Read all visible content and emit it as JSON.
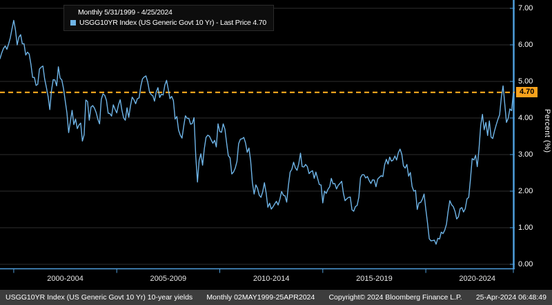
{
  "chart_data": {
    "type": "line",
    "title": "USGG10YR Index (US Generic Govt 10 Yr) - Last Price 4.70",
    "legend": {
      "line1": "Monthly 5/31/1999 - 4/25/2024",
      "line2": "USGG10YR Index (US Generic Govt 10 Yr) - Last Price 4.70"
    },
    "legend_position": "top-left",
    "grid": "horizontal",
    "ylabel": "Percent (%)",
    "ylim": [
      0,
      7
    ],
    "yticks": [
      {
        "value": 7,
        "label": "7.00"
      },
      {
        "value": 6,
        "label": "6.00"
      },
      {
        "value": 5,
        "label": "5.00"
      },
      {
        "value": 4,
        "label": "4.00"
      },
      {
        "value": 3,
        "label": "3.00"
      },
      {
        "value": 2,
        "label": "2.00"
      },
      {
        "value": 1,
        "label": "1.00"
      },
      {
        "value": 0,
        "label": "0.00"
      }
    ],
    "last_price": {
      "value": 4.7,
      "label": "4.70"
    },
    "x_start": "5/31/1999",
    "x_end": "4/25/2024",
    "x_group_labels": [
      {
        "label": "2000-2004",
        "center_index": 38
      },
      {
        "label": "2005-2009",
        "center_index": 98
      },
      {
        "label": "2010-2014",
        "center_index": 158
      },
      {
        "label": "2015-2019",
        "center_index": 218
      },
      {
        "label": "2020-2024",
        "center_index": 278
      }
    ],
    "x_tick_indices": [
      8,
      68,
      128,
      188,
      248,
      299
    ],
    "series": [
      {
        "name": "USGG10YR Index",
        "color": "#6fb5e8",
        "values": [
          5.62,
          5.78,
          5.9,
          5.97,
          5.88,
          6.02,
          6.19,
          6.44,
          6.67,
          6.41,
          6.0,
          6.21,
          6.28,
          6.03,
          6.03,
          5.72,
          5.8,
          5.75,
          5.47,
          5.11,
          5.11,
          4.89,
          4.92,
          5.34,
          5.39,
          5.42,
          5.07,
          4.84,
          4.59,
          4.23,
          4.75,
          5.05,
          5.04,
          4.88,
          5.4,
          5.09,
          5.04,
          4.8,
          4.46,
          4.14,
          3.6,
          3.91,
          4.21,
          3.82,
          3.97,
          3.71,
          3.81,
          3.86,
          3.37,
          3.54,
          4.49,
          4.45,
          3.94,
          4.3,
          4.34,
          4.27,
          4.15,
          3.97,
          3.84,
          4.51,
          4.66,
          4.62,
          4.48,
          4.13,
          4.12,
          4.05,
          4.36,
          4.24,
          4.14,
          4.36,
          4.5,
          4.21,
          4.0,
          3.94,
          4.28,
          4.02,
          4.33,
          4.57,
          4.5,
          4.39,
          4.53,
          4.55,
          4.86,
          5.07,
          5.12,
          5.15,
          4.99,
          4.73,
          4.64,
          4.61,
          4.46,
          4.71,
          4.83,
          4.56,
          4.65,
          4.63,
          4.9,
          5.03,
          4.78,
          4.53,
          4.59,
          4.48,
          3.97,
          4.04,
          3.67,
          3.53,
          3.45,
          3.77,
          4.06,
          3.99,
          3.99,
          3.83,
          3.85,
          4.01,
          2.96,
          2.25,
          2.84,
          3.02,
          2.71,
          3.16,
          3.47,
          3.53,
          3.5,
          3.4,
          3.31,
          3.39,
          3.21,
          3.84,
          3.63,
          3.61,
          3.84,
          3.69,
          3.31,
          2.97,
          2.91,
          2.47,
          2.52,
          2.63,
          2.81,
          3.3,
          3.42,
          3.43,
          3.47,
          3.32,
          3.06,
          3.18,
          2.82,
          2.23,
          1.92,
          2.17,
          2.08,
          1.89,
          1.83,
          1.98,
          2.23,
          1.95,
          1.56,
          1.67,
          1.51,
          1.57,
          1.65,
          1.72,
          1.62,
          1.78,
          1.99,
          1.89,
          1.87,
          1.7,
          2.16,
          2.52,
          2.6,
          2.79,
          2.64,
          2.57,
          2.75,
          3.04,
          2.67,
          2.66,
          2.73,
          2.67,
          2.48,
          2.53,
          2.56,
          2.35,
          2.52,
          2.35,
          2.18,
          2.17,
          1.68,
          2.0,
          1.94,
          2.05,
          2.12,
          2.35,
          2.2,
          2.21,
          2.06,
          2.16,
          2.21,
          2.27,
          1.94,
          1.74,
          1.79,
          1.83,
          1.84,
          1.49,
          1.45,
          1.58,
          1.61,
          1.84,
          2.37,
          2.45,
          2.45,
          2.36,
          2.4,
          2.29,
          2.21,
          2.31,
          2.3,
          2.12,
          2.33,
          2.38,
          2.42,
          2.4,
          2.72,
          2.87,
          2.74,
          2.93,
          2.82,
          2.85,
          2.96,
          2.85,
          3.05,
          3.15,
          3.01,
          2.69,
          2.63,
          2.73,
          2.41,
          2.51,
          2.13,
          2.0,
          2.02,
          1.5,
          1.68,
          1.69,
          1.78,
          1.92,
          1.51,
          1.13,
          0.7,
          0.64,
          0.65,
          0.66,
          0.55,
          0.71,
          0.69,
          0.88,
          0.84,
          0.93,
          1.09,
          1.44,
          1.74,
          1.63,
          1.58,
          1.45,
          1.24,
          1.3,
          1.52,
          1.55,
          1.43,
          1.52,
          1.79,
          1.83,
          2.32,
          2.89,
          2.85,
          2.98,
          2.67,
          3.15,
          3.8,
          4.1,
          3.68,
          3.88,
          3.52,
          3.92,
          3.48,
          3.44,
          3.64,
          3.81,
          3.96,
          4.09,
          4.57,
          4.88,
          4.37,
          3.88,
          3.99,
          4.25,
          4.2,
          4.7
        ]
      }
    ]
  },
  "footer": {
    "description": "USGG10YR Index (US Generic Govt 10 Yr) 10-year yields",
    "period": "Monthly 02MAY1999-25APR2024",
    "copyright": "Copyright© 2024 Bloomberg Finance L.P.",
    "timestamp": "25-Apr-2024 06:48:49"
  },
  "colors": {
    "background": "#000000",
    "line": "#6fb5e8",
    "axis": "#4f9fdd",
    "last_price_line": "#f9a21c",
    "grid": "#2e2e2e",
    "footer_bg": "#3d3d3d",
    "text": "#ffffff"
  }
}
